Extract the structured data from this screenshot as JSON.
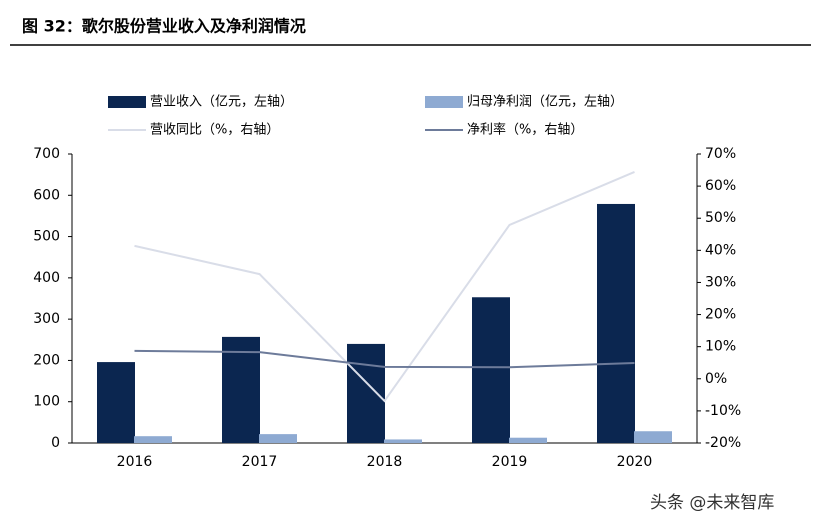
{
  "chart_data": {
    "type": "bar-line",
    "title": "图 32：歌尔股份营业收入及净利润情况",
    "watermark": "头条 @未来智库",
    "categories": [
      "2016",
      "2017",
      "2018",
      "2019",
      "2020"
    ],
    "series": [
      {
        "name": "营业收入（亿元，左轴）",
        "type": "bar",
        "color": "#0b2650",
        "values": [
          196,
          257,
          240,
          353,
          579
        ]
      },
      {
        "name": "归母净利润（亿元，左轴）",
        "type": "bar",
        "color": "#8eaad2",
        "values": [
          16.5,
          21.5,
          8.6,
          12.8,
          28.5
        ]
      },
      {
        "name": "营收同比（%，右轴）",
        "type": "line",
        "axis": "y2",
        "color": "#d9dde8",
        "values": [
          41.4,
          32.6,
          -6.9,
          47.9,
          64.4
        ]
      },
      {
        "name": "净利率（%，右轴）",
        "type": "line",
        "axis": "y2",
        "color": "#6d7b9a",
        "values": [
          8.7,
          8.3,
          3.7,
          3.6,
          4.9
        ]
      }
    ],
    "ylim": [
      0,
      700
    ],
    "yticks": [
      0,
      100,
      200,
      300,
      400,
      500,
      600,
      700
    ],
    "y2lim": [
      -20,
      70
    ],
    "y2ticks": [
      {
        "value": -20,
        "label": "-20%"
      },
      {
        "value": -10,
        "label": "-10%"
      },
      {
        "value": 0,
        "label": "0%"
      },
      {
        "value": 10,
        "label": "10%"
      },
      {
        "value": 20,
        "label": "20%"
      },
      {
        "value": 30,
        "label": "30%"
      },
      {
        "value": 40,
        "label": "40%"
      },
      {
        "value": 50,
        "label": "50%"
      },
      {
        "value": 60,
        "label": "60%"
      },
      {
        "value": 70,
        "label": "70%"
      }
    ]
  }
}
